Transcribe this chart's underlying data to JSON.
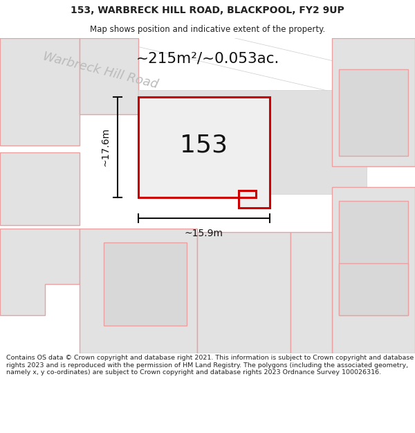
{
  "title_line1": "153, WARBRECK HILL ROAD, BLACKPOOL, FY2 9UP",
  "title_line2": "Map shows position and indicative extent of the property.",
  "area_text": "~215m²/~0.053ac.",
  "road_label": "Warbreck Hill Road",
  "property_number": "153",
  "dim_height": "~17.6m",
  "dim_width": "~15.9m",
  "footer_text": "Contains OS data © Crown copyright and database right 2021. This information is subject to Crown copyright and database rights 2023 and is reproduced with the permission of HM Land Registry. The polygons (including the associated geometry, namely x, y co-ordinates) are subject to Crown copyright and database rights 2023 Ordnance Survey 100026316.",
  "bg_color": "#ffffff",
  "map_bg": "#f0f0f0",
  "plot_fill": "#e8e8e8",
  "plot_stroke": "#cc0000",
  "road_color": "#ffffff",
  "neighbor_fill": "#e2e2e2",
  "neighbor_stroke": "#e8a0a0",
  "dim_color": "#111111",
  "road_label_color": "#bbbbbb",
  "title_color": "#222222",
  "footer_color": "#222222"
}
